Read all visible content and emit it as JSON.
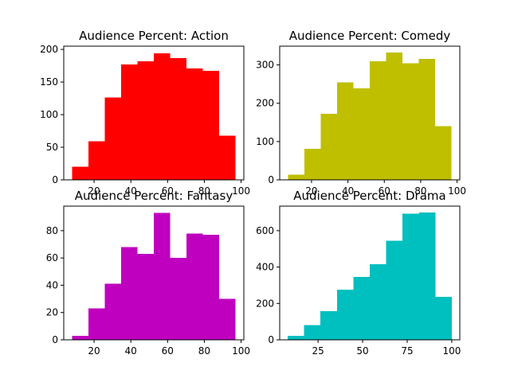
{
  "chart_data": [
    {
      "type": "bar",
      "title": "Audience Percent: Action",
      "xlabel": "",
      "ylabel": "",
      "color": "#ff0000",
      "bin_edges": [
        8.0,
        16.9,
        25.8,
        34.7,
        43.6,
        52.5,
        61.4,
        70.3,
        79.2,
        88.1,
        97.0
      ],
      "values": [
        20,
        59,
        126,
        177,
        182,
        194,
        187,
        171,
        167,
        68
      ],
      "xlim": [
        3.5,
        101.5
      ],
      "ylim": [
        0,
        205
      ],
      "xticks": [
        20,
        40,
        60,
        80,
        100
      ],
      "yticks": [
        0,
        50,
        100,
        150,
        200
      ]
    },
    {
      "type": "bar",
      "title": "Audience Percent: Comedy",
      "xlabel": "",
      "ylabel": "",
      "color": "#bfbf00",
      "bin_edges": [
        7.0,
        16.0,
        25.0,
        34.0,
        43.0,
        52.0,
        61.0,
        70.0,
        79.0,
        88.0,
        97.0
      ],
      "values": [
        14,
        81,
        172,
        254,
        239,
        310,
        332,
        304,
        316,
        140
      ],
      "xlim": [
        2.5,
        101.5
      ],
      "ylim": [
        0,
        349
      ],
      "xticks": [
        20,
        40,
        60,
        80,
        100
      ],
      "yticks": [
        0,
        100,
        200,
        300
      ]
    },
    {
      "type": "bar",
      "title": "Audience Percent: Fantasy",
      "xlabel": "",
      "ylabel": "",
      "color": "#bf00bf",
      "bin_edges": [
        8.0,
        16.9,
        25.8,
        34.7,
        43.6,
        52.5,
        61.4,
        70.3,
        79.2,
        88.1,
        97.0
      ],
      "values": [
        3,
        23,
        41,
        68,
        63,
        93,
        60,
        78,
        77,
        30
      ],
      "xlim": [
        3.5,
        101.5
      ],
      "ylim": [
        0,
        98
      ],
      "xticks": [
        20,
        40,
        60,
        80,
        100
      ],
      "yticks": [
        0,
        20,
        40,
        60,
        80
      ]
    },
    {
      "type": "bar",
      "title": "Audience Percent: Drama",
      "xlabel": "",
      "ylabel": "",
      "color": "#00bfbf",
      "bin_edges": [
        8.0,
        17.2,
        26.4,
        35.6,
        44.8,
        54.0,
        63.2,
        72.4,
        81.6,
        90.8,
        100.0
      ],
      "values": [
        22,
        81,
        157,
        275,
        345,
        415,
        545,
        694,
        700,
        237
      ],
      "xlim": [
        3.5,
        104.5
      ],
      "ylim": [
        0,
        735
      ],
      "xticks": [
        25,
        50,
        75,
        100
      ],
      "yticks": [
        0,
        200,
        400,
        600
      ]
    }
  ]
}
